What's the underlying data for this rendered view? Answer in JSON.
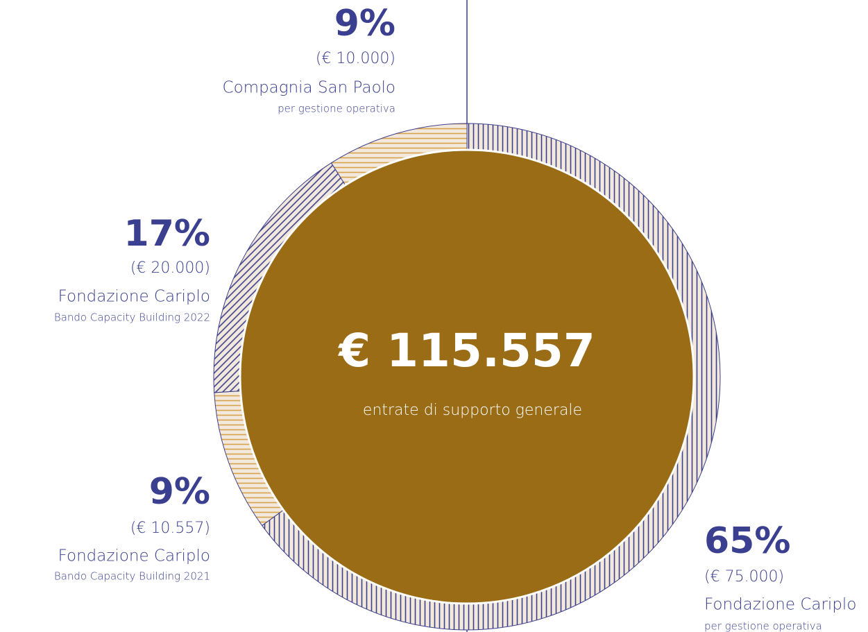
{
  "chart_data": {
    "type": "donut",
    "center_value": "€ 115.557",
    "center_label": "entrate di supporto generale",
    "categories": [
      "Fondazione Cariplo",
      "Fondazione Cariplo",
      "Fondazione Cariplo",
      "Compagnia San Paolo"
    ],
    "subtitles": [
      "per gestione operativa",
      "Bando Capacity Building 2021",
      "Bando Capacity Building 2022",
      "per gestione operativa"
    ],
    "amounts": [
      "(€ 75.000)",
      "(€ 10.557)",
      "(€ 20.000)",
      "(€ 10.000)"
    ],
    "values": [
      65,
      9,
      17,
      9
    ],
    "value_labels": [
      "65%",
      "9%",
      "17%",
      "9%"
    ],
    "colors": [
      "#3b3f8c",
      "#d9a24a",
      "#3b3f8c",
      "#d9a24a"
    ],
    "background_color": "#f2e8dc",
    "center_color": "#9a6c15",
    "text_color": "#3a3f8f"
  }
}
